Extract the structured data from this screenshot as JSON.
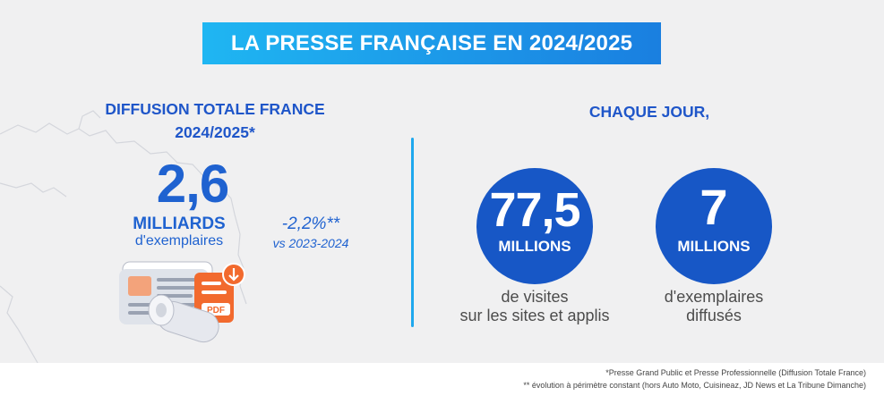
{
  "title": "LA PRESSE FRANÇAISE EN 2024/2025",
  "left": {
    "heading_line1": "DIFFUSION TOTALE FRANCE",
    "heading_line2": "2024/2025*",
    "big_number": "2,6",
    "unit": "MILLIARDS",
    "unit_sub": "d'exemplaires",
    "evolution": "-2,2%**",
    "evolution_sub": "vs 2023-2024",
    "icons": [
      "map-icon",
      "newspaper-icon",
      "pdf-icon",
      "rolled-newspaper-icon"
    ]
  },
  "right": {
    "heading": "CHAQUE JOUR,",
    "stats": [
      {
        "number": "77,5",
        "unit": "MILLIONS",
        "caption_line1": "de visites",
        "caption_line2": "sur les sites et applis"
      },
      {
        "number": "7",
        "unit": "MILLIONS",
        "caption_line1": "d'exemplaires",
        "caption_line2": "diffusés"
      }
    ]
  },
  "footnotes": [
    "*Presse Grand Public et Presse Professionnelle (Diffusion Totale France)",
    "** évolution à périmètre constant (hors Auto Moto, Cuisineaz, JD News et La Tribune Dimanche)"
  ],
  "colors": {
    "primary_blue": "#1f56c9",
    "circle_blue": "#1757c6",
    "title_gradient_start": "#1fb6f2",
    "title_gradient_end": "#1a7fe0",
    "panel_bg": "#f0f0f1",
    "pdf_orange": "#f26a2e"
  }
}
